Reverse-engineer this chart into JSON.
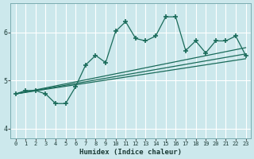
{
  "xlabel": "Humidex (Indice chaleur)",
  "ylabel": "",
  "bg_color": "#cce8ec",
  "grid_color": "#ffffff",
  "line_color": "#1a6b5a",
  "xlim": [
    -0.5,
    23.5
  ],
  "ylim": [
    3.8,
    6.6
  ],
  "xticks": [
    0,
    1,
    2,
    3,
    4,
    5,
    6,
    7,
    8,
    9,
    10,
    11,
    12,
    13,
    14,
    15,
    16,
    17,
    18,
    19,
    20,
    21,
    22,
    23
  ],
  "yticks": [
    4,
    5,
    6
  ],
  "main_x": [
    0,
    1,
    2,
    3,
    4,
    5,
    6,
    7,
    8,
    9,
    10,
    11,
    12,
    13,
    14,
    15,
    16,
    17,
    18,
    19,
    20,
    21,
    22,
    23
  ],
  "main_y": [
    4.72,
    4.79,
    4.79,
    4.72,
    4.52,
    4.52,
    4.87,
    5.32,
    5.52,
    5.37,
    6.02,
    6.22,
    5.87,
    5.82,
    5.92,
    6.32,
    6.32,
    5.62,
    5.82,
    5.57,
    5.82,
    5.82,
    5.92,
    5.52
  ],
  "line1_x": [
    0,
    23
  ],
  "line1_y": [
    4.72,
    5.45
  ],
  "line2_x": [
    0,
    23
  ],
  "line2_y": [
    4.72,
    5.55
  ],
  "line3_x": [
    0,
    23
  ],
  "line3_y": [
    4.72,
    5.68
  ]
}
